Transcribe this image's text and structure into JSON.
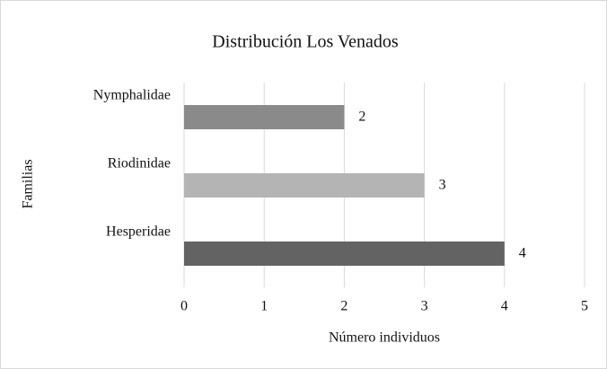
{
  "chart_data": {
    "type": "bar",
    "orientation": "horizontal",
    "title": "Distribución Los Venados",
    "x_label": "Número individuos",
    "y_label": "Familias",
    "categories": [
      "Nymphalidae",
      "Riodinidae",
      "Hesperidae"
    ],
    "values": [
      2,
      3,
      4
    ],
    "colors": [
      "#8a8a8a",
      "#b4b4b4",
      "#636363"
    ],
    "xlim": [
      0,
      5
    ],
    "xticks": [
      0,
      1,
      2,
      3,
      4,
      5
    ],
    "grid": true
  }
}
